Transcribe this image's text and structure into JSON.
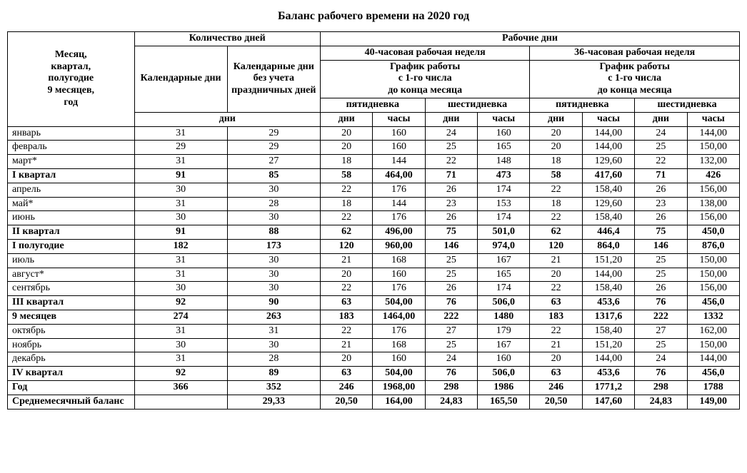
{
  "title": "Баланс рабочего времени на 2020 год",
  "headers": {
    "period": "Месяц,\nквартал,\nполугодие\n9 месяцев,\nгод",
    "qty_days": "Количество дней",
    "work_days": "Рабочие дни",
    "cal_days": "Календарные дни",
    "cal_days_no_holidays": "Календарные дни без учета праздничных дней",
    "week40": "40-часовая рабочая неделя",
    "week36": "36-часовая рабочая неделя",
    "schedule": "График работы\nс 1-го числа\nдо конца месяца",
    "five_day": "пятидневка",
    "six_day": "шестидневка",
    "days_unit": "дни",
    "days_col": "дни",
    "hours_col": "часы"
  },
  "rows": [
    {
      "bold": false,
      "label": "январь",
      "cal": "31",
      "calnh": "29",
      "d40_5": "20",
      "h40_5": "160",
      "d40_6": "24",
      "h40_6": "160",
      "d36_5": "20",
      "h36_5": "144,00",
      "d36_6": "24",
      "h36_6": "144,00"
    },
    {
      "bold": false,
      "label": "февраль",
      "cal": "29",
      "calnh": "29",
      "d40_5": "20",
      "h40_5": "160",
      "d40_6": "25",
      "h40_6": "165",
      "d36_5": "20",
      "h36_5": "144,00",
      "d36_6": "25",
      "h36_6": "150,00"
    },
    {
      "bold": false,
      "label": "март*",
      "cal": "31",
      "calnh": "27",
      "d40_5": "18",
      "h40_5": "144",
      "d40_6": "22",
      "h40_6": "148",
      "d36_5": "18",
      "h36_5": "129,60",
      "d36_6": "22",
      "h36_6": "132,00"
    },
    {
      "bold": true,
      "label": "I квартал",
      "cal": "91",
      "calnh": "85",
      "d40_5": "58",
      "h40_5": "464,00",
      "d40_6": "71",
      "h40_6": "473",
      "d36_5": "58",
      "h36_5": "417,60",
      "d36_6": "71",
      "h36_6": "426"
    },
    {
      "bold": false,
      "label": "апрель",
      "cal": "30",
      "calnh": "30",
      "d40_5": "22",
      "h40_5": "176",
      "d40_6": "26",
      "h40_6": "174",
      "d36_5": "22",
      "h36_5": "158,40",
      "d36_6": "26",
      "h36_6": "156,00"
    },
    {
      "bold": false,
      "label": "май*",
      "cal": "31",
      "calnh": "28",
      "d40_5": "18",
      "h40_5": "144",
      "d40_6": "23",
      "h40_6": "153",
      "d36_5": "18",
      "h36_5": "129,60",
      "d36_6": "23",
      "h36_6": "138,00"
    },
    {
      "bold": false,
      "label": "июнь",
      "cal": "30",
      "calnh": "30",
      "d40_5": "22",
      "h40_5": "176",
      "d40_6": "26",
      "h40_6": "174",
      "d36_5": "22",
      "h36_5": "158,40",
      "d36_6": "26",
      "h36_6": "156,00"
    },
    {
      "bold": true,
      "label": "II квартал",
      "cal": "91",
      "calnh": "88",
      "d40_5": "62",
      "h40_5": "496,00",
      "d40_6": "75",
      "h40_6": "501,0",
      "d36_5": "62",
      "h36_5": "446,4",
      "d36_6": "75",
      "h36_6": "450,0"
    },
    {
      "bold": true,
      "label": "I полугодие",
      "cal": "182",
      "calnh": "173",
      "d40_5": "120",
      "h40_5": "960,00",
      "d40_6": "146",
      "h40_6": "974,0",
      "d36_5": "120",
      "h36_5": "864,0",
      "d36_6": "146",
      "h36_6": "876,0"
    },
    {
      "bold": false,
      "label": "июль",
      "cal": "31",
      "calnh": "30",
      "d40_5": "21",
      "h40_5": "168",
      "d40_6": "25",
      "h40_6": "167",
      "d36_5": "21",
      "h36_5": "151,20",
      "d36_6": "25",
      "h36_6": "150,00"
    },
    {
      "bold": false,
      "label": "август*",
      "cal": "31",
      "calnh": "30",
      "d40_5": "20",
      "h40_5": "160",
      "d40_6": "25",
      "h40_6": "165",
      "d36_5": "20",
      "h36_5": "144,00",
      "d36_6": "25",
      "h36_6": "150,00"
    },
    {
      "bold": false,
      "label": "сентябрь",
      "cal": "30",
      "calnh": "30",
      "d40_5": "22",
      "h40_5": "176",
      "d40_6": "26",
      "h40_6": "174",
      "d36_5": "22",
      "h36_5": "158,40",
      "d36_6": "26",
      "h36_6": "156,00"
    },
    {
      "bold": true,
      "label": "III квартал",
      "cal": "92",
      "calnh": "90",
      "d40_5": "63",
      "h40_5": "504,00",
      "d40_6": "76",
      "h40_6": "506,0",
      "d36_5": "63",
      "h36_5": "453,6",
      "d36_6": "76",
      "h36_6": "456,0"
    },
    {
      "bold": true,
      "label": "9 месяцев",
      "cal": "274",
      "calnh": "263",
      "d40_5": "183",
      "h40_5": "1464,00",
      "d40_6": "222",
      "h40_6": "1480",
      "d36_5": "183",
      "h36_5": "1317,6",
      "d36_6": "222",
      "h36_6": "1332"
    },
    {
      "bold": false,
      "label": "октябрь",
      "cal": "31",
      "calnh": "31",
      "d40_5": "22",
      "h40_5": "176",
      "d40_6": "27",
      "h40_6": "179",
      "d36_5": "22",
      "h36_5": "158,40",
      "d36_6": "27",
      "h36_6": "162,00"
    },
    {
      "bold": false,
      "label": "ноябрь",
      "cal": "30",
      "calnh": "30",
      "d40_5": "21",
      "h40_5": "168",
      "d40_6": "25",
      "h40_6": "167",
      "d36_5": "21",
      "h36_5": "151,20",
      "d36_6": "25",
      "h36_6": "150,00"
    },
    {
      "bold": false,
      "label": "декабрь",
      "cal": "31",
      "calnh": "28",
      "d40_5": "20",
      "h40_5": "160",
      "d40_6": "24",
      "h40_6": "160",
      "d36_5": "20",
      "h36_5": "144,00",
      "d36_6": "24",
      "h36_6": "144,00"
    },
    {
      "bold": true,
      "label": "IV квартал",
      "cal": "92",
      "calnh": "89",
      "d40_5": "63",
      "h40_5": "504,00",
      "d40_6": "76",
      "h40_6": "506,0",
      "d36_5": "63",
      "h36_5": "453,6",
      "d36_6": "76",
      "h36_6": "456,0"
    },
    {
      "bold": true,
      "label": "Год",
      "cal": "366",
      "calnh": "352",
      "d40_5": "246",
      "h40_5": "1968,00",
      "d40_6": "298",
      "h40_6": "1986",
      "d36_5": "246",
      "h36_5": "1771,2",
      "d36_6": "298",
      "h36_6": "1788"
    },
    {
      "bold": true,
      "label": "Среднемесячный баланс",
      "cal": "",
      "calnh": "29,33",
      "d40_5": "20,50",
      "h40_5": "164,00",
      "d40_6": "24,83",
      "h40_6": "165,50",
      "d36_5": "20,50",
      "h36_5": "147,60",
      "d36_6": "24,83",
      "h36_6": "149,00"
    }
  ]
}
